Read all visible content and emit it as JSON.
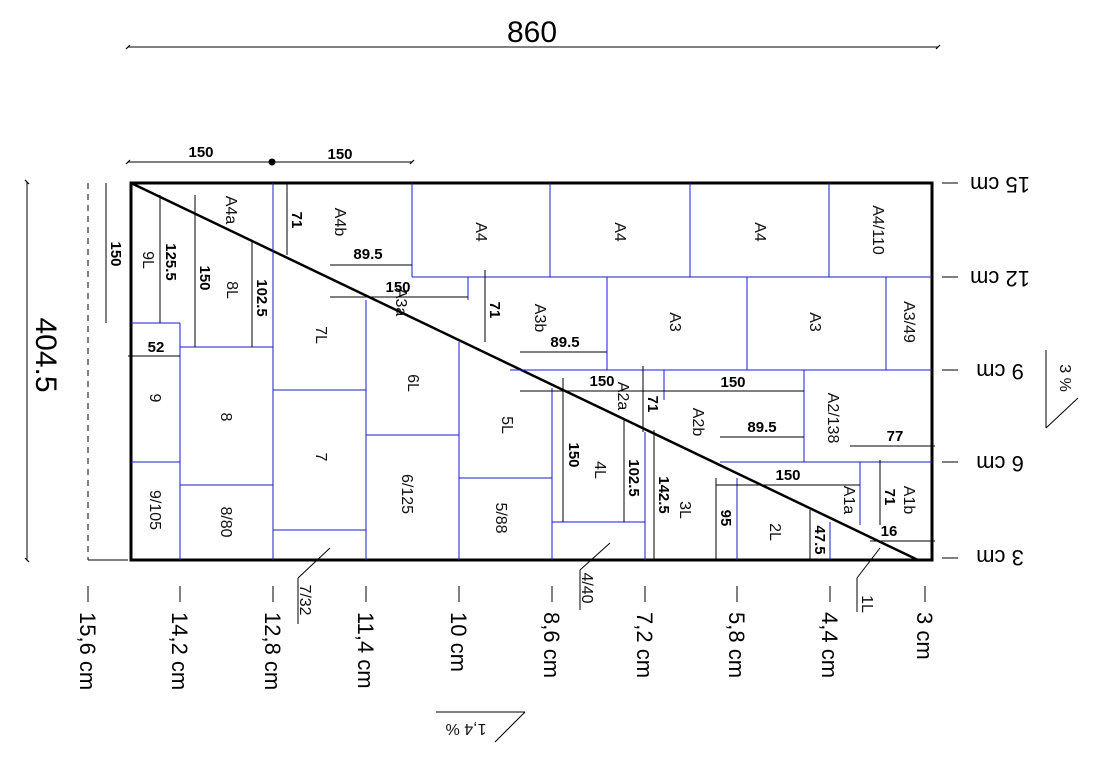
{
  "overall": {
    "width": "860",
    "height": "404.5"
  },
  "top_dims": [
    "150",
    "150"
  ],
  "right_levels": [
    "15 cm",
    "12 cm",
    "9 cm",
    "6 cm",
    "3 cm"
  ],
  "bottom_levels": [
    "15,6 cm",
    "14,2 cm",
    "12,8 cm",
    "11,4 cm",
    "10 cm",
    "8,6 cm",
    "7,2 cm",
    "5,8 cm",
    "4,4 cm",
    "3 cm"
  ],
  "slopes": {
    "right": "3 %",
    "bottom": "1,4 %"
  },
  "zones": {
    "a4a": "A4a",
    "a4b": "A4b",
    "a4_1": "A4",
    "a4_2": "A4",
    "a4_3": "A4",
    "a4_110": "A4/110",
    "a3a": "A3a",
    "a3b": "A3b",
    "a3_1": "A3",
    "a3_2": "A3",
    "a3_49": "A3/49",
    "a2a": "A2a",
    "a2b": "A2b",
    "a2_138": "A2/138",
    "a1a": "A1a",
    "a1b": "A1b",
    "l9": "9L",
    "l8": "8L",
    "l7": "7L",
    "l6": "6L",
    "l5": "5L",
    "l4": "4L",
    "l3": "3L",
    "l2": "2L",
    "l1": "1L",
    "n9": "9",
    "n8": "8",
    "n7": "7",
    "n9_105": "9/105",
    "n8_80": "8/80",
    "n7_32": "7/32",
    "n6_125": "6/125",
    "n5_88": "5/88",
    "n4_40": "4/40"
  },
  "dims": {
    "d150_left": "150",
    "d125_5": "125.5",
    "d150_b": "150",
    "d102_5_a": "102.5",
    "d52": "52",
    "d71_a": "71",
    "d89_5_a": "89.5",
    "d150_c": "150",
    "d71_b": "71",
    "d89_5_b": "89.5",
    "d150_d": "150",
    "d150_e": "150",
    "d71_c": "71",
    "d89_5_c": "89.5",
    "d77": "77",
    "d150_f": "150",
    "d102_5_b": "102.5",
    "d142_5": "142.5",
    "d95": "95",
    "d150_g": "150",
    "d71_d": "71",
    "d47_5": "47.5",
    "d16": "16"
  }
}
